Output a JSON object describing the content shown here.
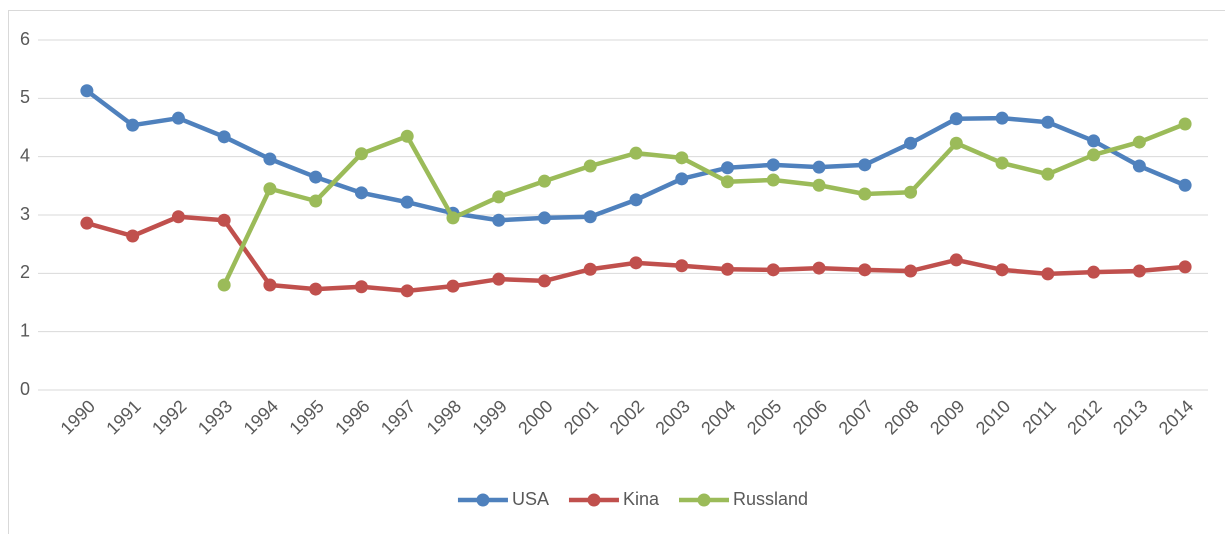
{
  "chart_data": {
    "type": "line",
    "categories": [
      "1990",
      "1991",
      "1992",
      "1993",
      "1994",
      "1995",
      "1996",
      "1997",
      "1998",
      "1999",
      "2000",
      "2001",
      "2002",
      "2003",
      "2004",
      "2005",
      "2006",
      "2007",
      "2008",
      "2009",
      "2010",
      "2011",
      "2012",
      "2013",
      "2014"
    ],
    "series": [
      {
        "name": "USA",
        "color": "#4f81bd",
        "values": [
          5.13,
          4.54,
          4.66,
          4.34,
          3.96,
          3.65,
          3.38,
          3.22,
          3.03,
          2.91,
          2.95,
          2.97,
          3.26,
          3.62,
          3.81,
          3.86,
          3.82,
          3.86,
          4.23,
          4.65,
          4.66,
          4.59,
          4.27,
          3.84,
          3.51
        ]
      },
      {
        "name": "Kina",
        "color": "#c0504d",
        "values": [
          2.86,
          2.64,
          2.97,
          2.91,
          1.8,
          1.73,
          1.77,
          1.7,
          1.78,
          1.9,
          1.87,
          2.07,
          2.18,
          2.13,
          2.07,
          2.06,
          2.09,
          2.06,
          2.04,
          2.23,
          2.06,
          1.99,
          2.02,
          2.04,
          2.11
        ]
      },
      {
        "name": "Russland",
        "color": "#9bbb59",
        "values": [
          null,
          null,
          null,
          1.8,
          3.45,
          3.24,
          4.05,
          4.35,
          2.95,
          3.31,
          3.58,
          3.84,
          4.06,
          3.98,
          3.57,
          3.6,
          3.51,
          3.36,
          3.39,
          4.23,
          3.89,
          3.7,
          4.03,
          4.25,
          4.56
        ]
      }
    ],
    "ylim": [
      0,
      6
    ],
    "yticks": [
      0,
      1,
      2,
      3,
      4,
      5,
      6
    ],
    "grid": true,
    "legend": "bottom"
  }
}
